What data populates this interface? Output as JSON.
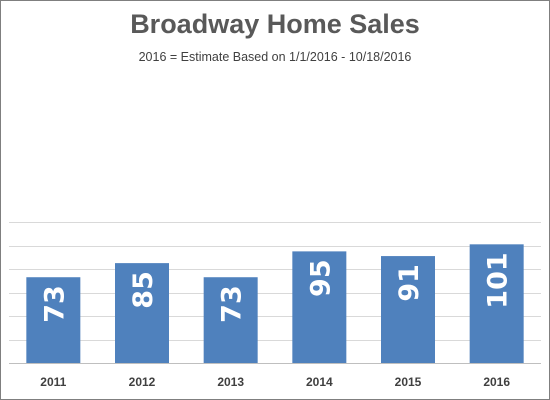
{
  "chart_data": {
    "type": "bar",
    "title": "Broadway Home Sales",
    "subtitle": "2016 = Estimate Based on 1/1/2016 - 10/18/2016",
    "categories": [
      "2011",
      "2012",
      "2013",
      "2014",
      "2015",
      "2016"
    ],
    "values": [
      73,
      85,
      73,
      95,
      91,
      101
    ],
    "data_labels": [
      "73",
      "85",
      "73",
      "95",
      "91",
      "101"
    ],
    "xlabel": "",
    "ylabel": "",
    "ylim": [
      0,
      120
    ],
    "grid": true,
    "legend": "none",
    "bar_color": "#4f81bd",
    "gridline_color": "#d9d9d9"
  }
}
